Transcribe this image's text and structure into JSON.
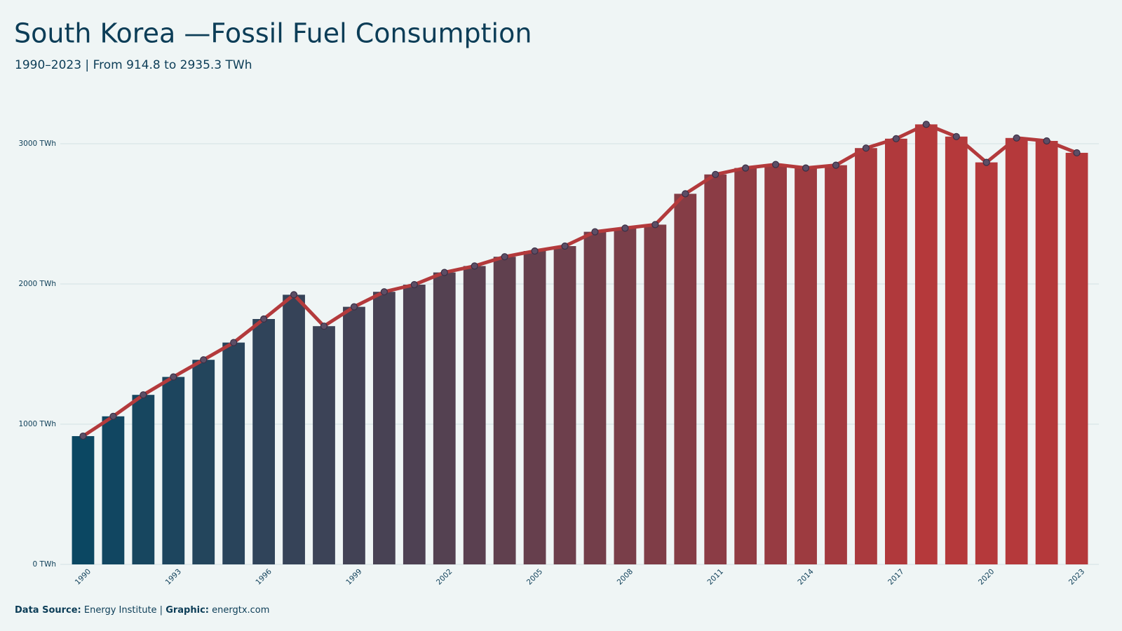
{
  "chart_data": {
    "type": "bar",
    "title": "South Korea —Fossil Fuel Consumption",
    "subtitle": "1990–2023 | From 914.8 to 2935.3 TWh",
    "categories": [
      "1990",
      null,
      null,
      "1993",
      null,
      null,
      "1996",
      null,
      null,
      "1999",
      null,
      null,
      "2002",
      null,
      null,
      "2005",
      null,
      null,
      "2008",
      null,
      null,
      "2011",
      null,
      null,
      "2014",
      null,
      null,
      "2017",
      null,
      null,
      "2020",
      null,
      null,
      "2023"
    ],
    "values": [
      914.8,
      1056,
      1209,
      1337,
      1459,
      1582,
      1750,
      1923,
      1699,
      1837,
      1944,
      1995,
      2082,
      2128,
      2194,
      2235,
      2270,
      2372,
      2398,
      2423,
      2643,
      2781,
      2827,
      2852,
      2827,
      2847,
      2969,
      3036,
      3138,
      3051,
      2867,
      3041,
      3020,
      2935.3
    ],
    "bar_colors": [
      "#0b4762",
      "#b5393b"
    ],
    "line_color": "#b33a3c",
    "marker_color": "#5c4e66",
    "ylim": [
      0,
      3210
    ],
    "yticks": [
      {
        "value": 0,
        "label": "0 TWh"
      },
      {
        "value": 1000,
        "label": "1000 TWh"
      },
      {
        "value": 2000,
        "label": "2000 TWh"
      },
      {
        "value": 3000,
        "label": "3000 TWh"
      }
    ],
    "grid": true,
    "footer": {
      "source_label": "Data Source:",
      "source": "Energy Institute |",
      "graphic_label": "Graphic:",
      "graphic": "energtx.com"
    }
  }
}
